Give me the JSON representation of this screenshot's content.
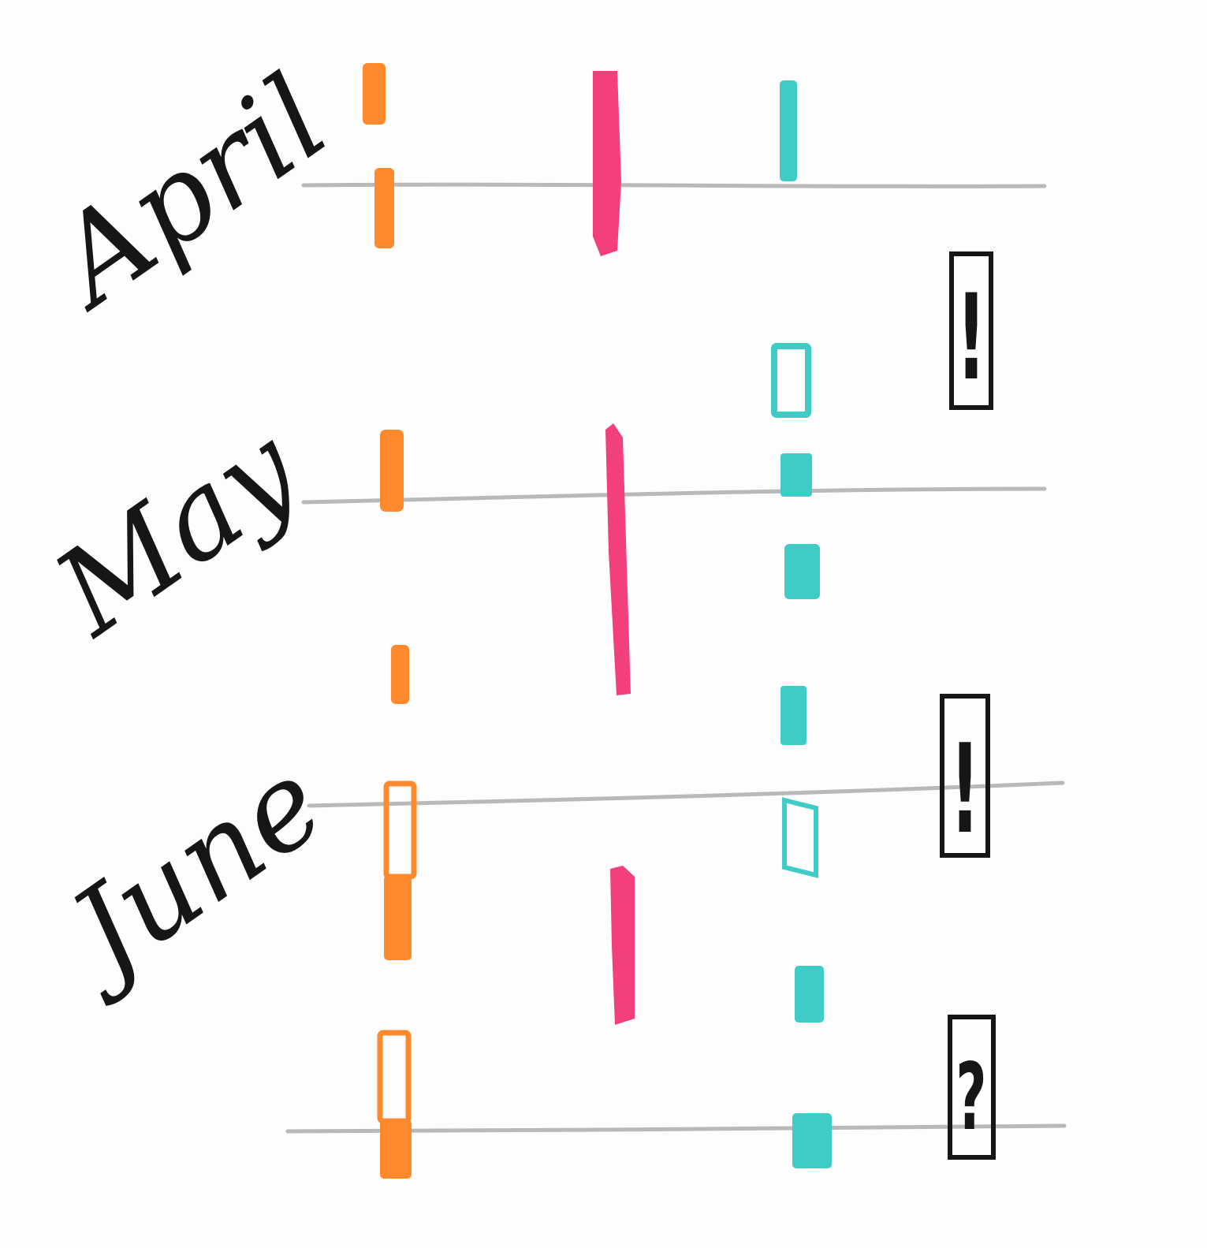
{
  "months": [
    {
      "key": "april",
      "label": "April"
    },
    {
      "key": "may",
      "label": "May"
    },
    {
      "key": "june",
      "label": "June"
    }
  ],
  "markers": {
    "alert_symbol": "!",
    "question_symbol": "?"
  },
  "colors": {
    "paper": "#fdfdfd",
    "pencil_line": "#b9b9b9",
    "ink": "#161616",
    "orange": "#ff8a2e",
    "pink": "#f23f7d",
    "teal": "#3fcbc6"
  }
}
